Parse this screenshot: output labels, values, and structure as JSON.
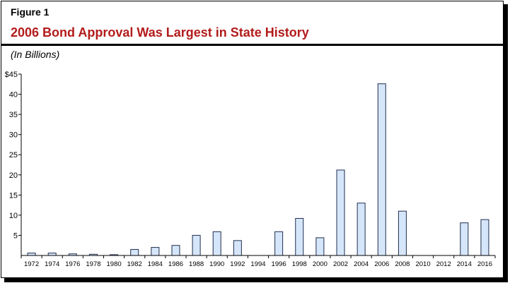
{
  "figure_label": "Figure 1",
  "title": "2006 Bond Approval Was Largest in State History",
  "units": "(In Billions)",
  "colors": {
    "title": "#b31b1b",
    "bar_fill": "#d6e6fa",
    "bar_stroke": "#1f2d4d",
    "axis": "#000000"
  },
  "chart_data": {
    "type": "bar",
    "title": "2006 Bond Approval Was Largest in State History",
    "xlabel": "",
    "ylabel": "(In Billions)",
    "ylim": [
      0,
      45
    ],
    "yticks": [
      5,
      10,
      15,
      20,
      25,
      30,
      35,
      40,
      45
    ],
    "ytick_labels": [
      "5",
      "10",
      "15",
      "20",
      "25",
      "30",
      "35",
      "40",
      "$45"
    ],
    "grid": false,
    "categories": [
      "1972",
      "1974",
      "1976",
      "1978",
      "1980",
      "1982",
      "1984",
      "1986",
      "1988",
      "1990",
      "1992",
      "1994",
      "1996",
      "1998",
      "2000",
      "2002",
      "2004",
      "2006",
      "2008",
      "2010",
      "2012",
      "2014",
      "2016"
    ],
    "values": [
      0.6,
      0.6,
      0.4,
      0.3,
      0.2,
      1.5,
      2.0,
      2.5,
      5.0,
      5.9,
      3.7,
      0,
      5.9,
      9.2,
      4.4,
      21.2,
      13.0,
      42.6,
      11.0,
      0,
      0,
      8.1,
      8.9
    ]
  }
}
